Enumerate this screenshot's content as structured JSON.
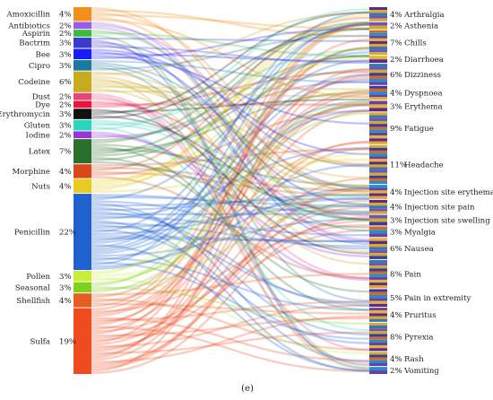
{
  "caption": "(e)",
  "chart_data": {
    "type": "sankey",
    "title": "",
    "sources": [
      {
        "name": "Amoxicillin",
        "value": 4,
        "label": "4%",
        "color": "#f28e1c"
      },
      {
        "name": "Antibiotics",
        "value": 2,
        "label": "2%",
        "color": "#9b5de5"
      },
      {
        "name": "Aspirin",
        "value": 2,
        "label": "2%",
        "color": "#3cbc3c"
      },
      {
        "name": "Bactrim",
        "value": 3,
        "label": "3%",
        "color": "#3a3acb"
      },
      {
        "name": "Bee",
        "value": 3,
        "label": "3%",
        "color": "#1a1aff"
      },
      {
        "name": "Cipro",
        "value": 3,
        "label": "3%",
        "color": "#1b7aa0"
      },
      {
        "name": "Codeine",
        "value": 6,
        "label": "6%",
        "color": "#c8aa1e"
      },
      {
        "name": "Dust",
        "value": 2,
        "label": "2%",
        "color": "#e8457c"
      },
      {
        "name": "Dye",
        "value": 2,
        "label": "2%",
        "color": "#e8163c"
      },
      {
        "name": "Erythromycin",
        "value": 3,
        "label": "3%",
        "color": "#111111"
      },
      {
        "name": "Gluten",
        "value": 3,
        "label": "3%",
        "color": "#2ad4bd"
      },
      {
        "name": "Iodine",
        "value": 2,
        "label": "2%",
        "color": "#9a34d6"
      },
      {
        "name": "Latex",
        "value": 7,
        "label": "7%",
        "color": "#2a6f2a"
      },
      {
        "name": "Morphine",
        "value": 4,
        "label": "4%",
        "color": "#d9481c"
      },
      {
        "name": "Nuts",
        "value": 4,
        "label": "4%",
        "color": "#e6cc1e"
      },
      {
        "name": "Penicillin",
        "value": 22,
        "label": "22%",
        "color": "#1f62cf"
      },
      {
        "name": "Pollen",
        "value": 3,
        "label": "3%",
        "color": "#c7ef3a"
      },
      {
        "name": "Seasonal",
        "value": 3,
        "label": "3%",
        "color": "#7fd11b"
      },
      {
        "name": "Shellfish",
        "value": 4,
        "label": "4%",
        "color": "#e65d1f"
      },
      {
        "name": "Sulfa",
        "value": 19,
        "label": "19%",
        "color": "#ef4b1f"
      }
    ],
    "targets": [
      {
        "name": "Arthralgia",
        "value": 4,
        "label": "4%"
      },
      {
        "name": "Asthenia",
        "value": 2,
        "label": "2%"
      },
      {
        "name": "Chills",
        "value": 7,
        "label": "7%"
      },
      {
        "name": "Diarrhoea",
        "value": 2,
        "label": "2%"
      },
      {
        "name": "Dizziness",
        "value": 6,
        "label": "6%"
      },
      {
        "name": "Dyspnoea",
        "value": 4,
        "label": "4%"
      },
      {
        "name": "Erythema",
        "value": 3,
        "label": "3%"
      },
      {
        "name": "Fatigue",
        "value": 9,
        "label": "9%"
      },
      {
        "name": "Headache",
        "value": 11,
        "label": "11%"
      },
      {
        "name": "Injection site erythema",
        "value": 4,
        "label": "4%"
      },
      {
        "name": "Injection site pain",
        "value": 4,
        "label": "4%"
      },
      {
        "name": "Injection site swelling",
        "value": 3,
        "label": "3%"
      },
      {
        "name": "Myalgia",
        "value": 3,
        "label": "3%"
      },
      {
        "name": "Nausea",
        "value": 6,
        "label": "6%"
      },
      {
        "name": "Pain",
        "value": 8,
        "label": "8%"
      },
      {
        "name": "Pain in extremity",
        "value": 5,
        "label": "5%"
      },
      {
        "name": "Pruritus",
        "value": 4,
        "label": "4%"
      },
      {
        "name": "Pyrexia",
        "value": 8,
        "label": "8%"
      },
      {
        "name": "Rash",
        "value": 4,
        "label": "4%"
      },
      {
        "name": "Vomiting",
        "value": 2,
        "label": "2%"
      }
    ],
    "target_stripe_colors": [
      "#5b2a86",
      "#e0a52a",
      "#2c7bb6",
      "#7a4fb3",
      "#c8ae2e",
      "#3a3aa0",
      "#d56a1f",
      "#1e8fd6",
      "#6d3f9a",
      "#e2b33c"
    ]
  }
}
